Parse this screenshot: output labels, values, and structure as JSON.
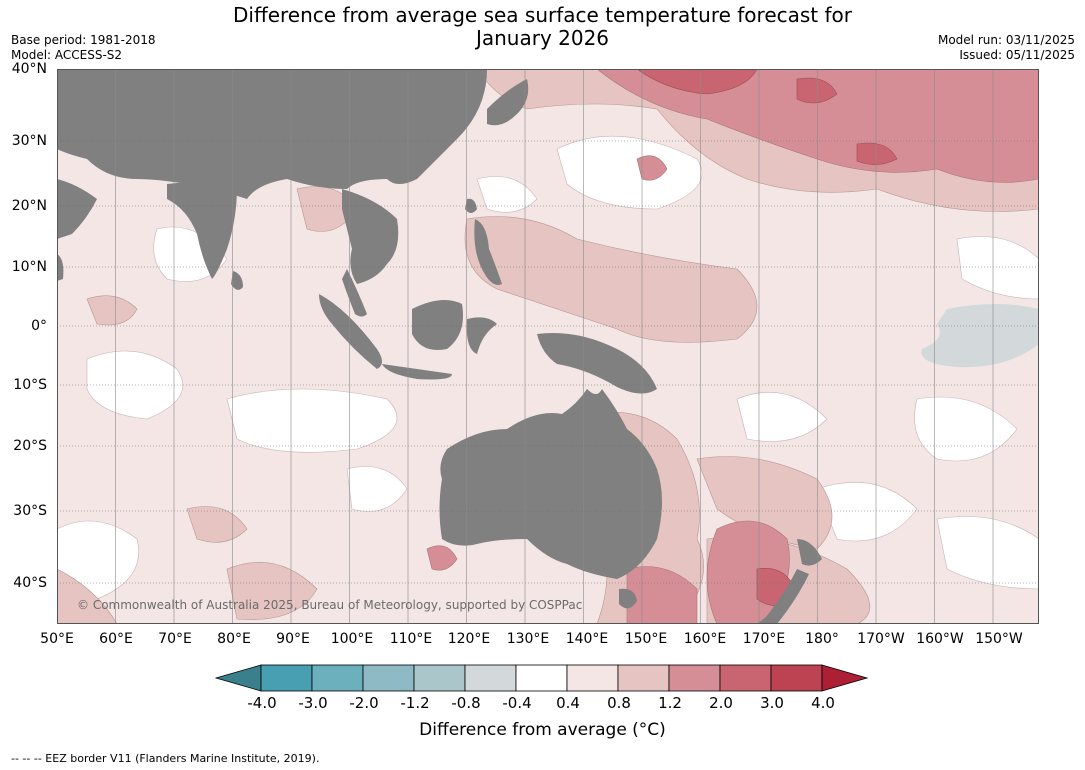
{
  "title_line1": "Difference from average sea surface temperature forecast for",
  "title_line2": "January 2026",
  "meta_left": [
    "Base period: 1981-2018",
    "Model: ACCESS-S2"
  ],
  "meta_right": [
    "Model run: 03/11/2025",
    "Issued: 05/11/2025"
  ],
  "lat_labels": [
    "40°N",
    "30°N",
    "20°N",
    "10°N",
    "0°",
    "10°S",
    "20°S",
    "30°S",
    "40°S"
  ],
  "lon_labels": [
    "50°E",
    "60°E",
    "70°E",
    "80°E",
    "90°E",
    "100°E",
    "110°E",
    "120°E",
    "130°E",
    "140°E",
    "150°E",
    "160°E",
    "170°E",
    "180°",
    "170°W",
    "160°W",
    "150°W"
  ],
  "copyright": "© Commonwealth of Australia 2025, Bureau of Meteorology, supported by COSPPac",
  "colorbar": {
    "ticks": [
      "-4.0",
      "-3.0",
      "-2.0",
      "-1.2",
      "-0.8",
      "-0.4",
      "0.4",
      "0.8",
      "1.2",
      "2.0",
      "3.0",
      "4.0"
    ],
    "colors": [
      "#3a7f8c",
      "#479fb1",
      "#6cafbd",
      "#8dbac4",
      "#abc6cb",
      "#d3d8da",
      "#ffffff",
      "#f3e6e5",
      "#e6c4c2",
      "#d58e96",
      "#c96571",
      "#bd4252",
      "#ac1f34"
    ],
    "label": "Difference from average (°C)"
  },
  "eez_note": "--  --  -- EEZ border V11 (Flanders Marine Institute, 2019).",
  "colors": {
    "land": "#808080",
    "background_anomaly": "#f3e6e5"
  }
}
